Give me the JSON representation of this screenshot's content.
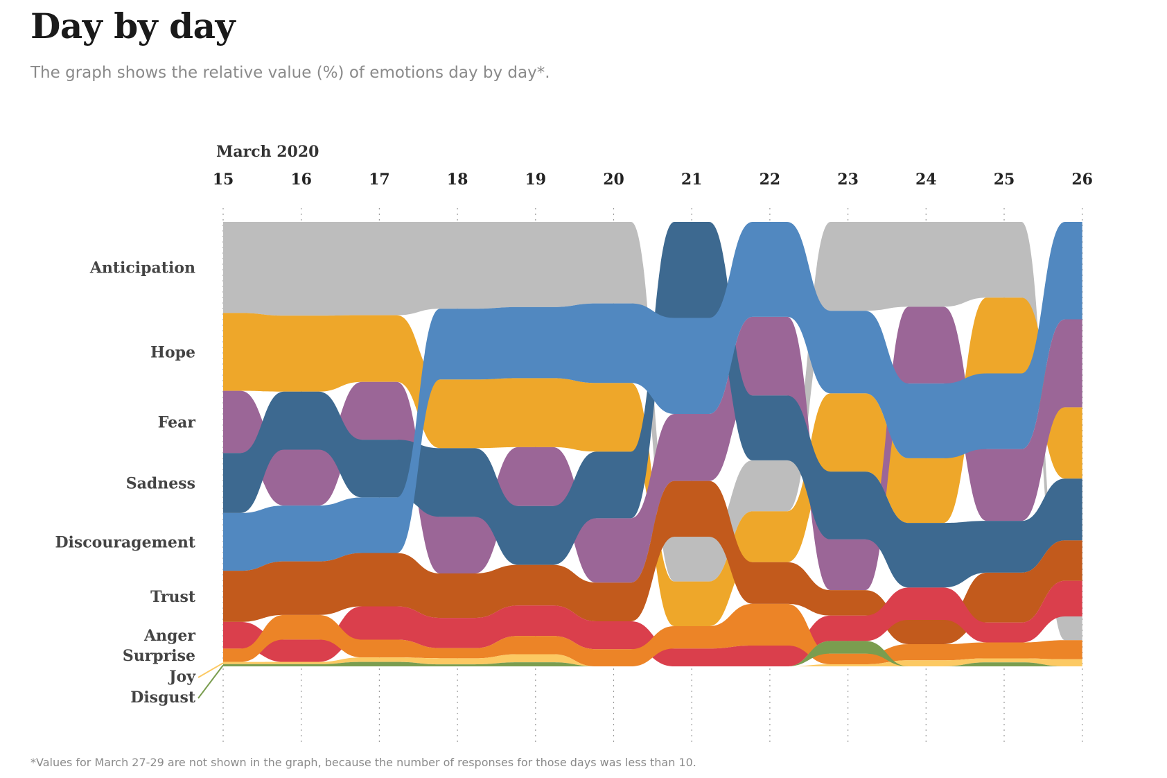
{
  "title": "Day by day",
  "subtitle": "The graph shows the relative value (%) of emotions day by day*.",
  "footnote": "*Values for March 27-29 are not shown in the graph, because the number of responses for those days was less than 10.",
  "chart_data": {
    "type": "area",
    "subtype": "bump-streamgraph (stacked 100%, re-ordered by rank each day)",
    "period_label": "March 2020",
    "x": [
      "15",
      "16",
      "17",
      "18",
      "19",
      "20",
      "21",
      "22",
      "23",
      "24",
      "25",
      "26"
    ],
    "ylim": [
      0,
      100
    ],
    "grid": "vertical dotted lines at each day",
    "legend": "left side, labels aligned to the bands on March 15",
    "series": [
      {
        "name": "Anticipation",
        "color": "#bdbdbd",
        "values": [
          20.5,
          21.0,
          21.0,
          21.5,
          21.0,
          19.0,
          10.0,
          11.0,
          21.0,
          21.0,
          19.0,
          5.0
        ]
      },
      {
        "name": "Hope",
        "color": "#eea72a",
        "values": [
          17.5,
          17.0,
          15.0,
          17.0,
          17.0,
          16.0,
          10.0,
          11.0,
          18.5,
          16.0,
          19.0,
          15.0
        ]
      },
      {
        "name": "Fear",
        "color": "#9b6697",
        "values": [
          14.0,
          12.5,
          13.0,
          14.0,
          14.5,
          15.0,
          15.0,
          17.0,
          12.0,
          19.0,
          18.0,
          18.5
        ]
      },
      {
        "name": "Sadness",
        "color": "#3d6990",
        "values": [
          13.5,
          13.0,
          13.0,
          17.0,
          14.5,
          15.5,
          21.5,
          14.0,
          16.0,
          16.0,
          13.0,
          13.0
        ]
      },
      {
        "name": "Discouragement",
        "color": "#5188c0",
        "values": [
          13.0,
          12.5,
          12.5,
          17.5,
          17.5,
          18.5,
          21.5,
          20.5,
          19.5,
          18.5,
          19.0,
          20.5
        ]
      },
      {
        "name": "Trust",
        "color": "#c25a1c",
        "values": [
          11.5,
          12.0,
          12.0,
          11.0,
          10.0,
          9.0,
          12.5,
          9.0,
          6.0,
          6.0,
          12.5,
          8.5
        ]
      },
      {
        "name": "Anger",
        "color": "#da3f4c",
        "values": [
          6.0,
          5.0,
          7.5,
          7.5,
          7.5,
          6.5,
          4.0,
          4.5,
          6.0,
          8.0,
          5.0,
          7.5
        ]
      },
      {
        "name": "Surprise",
        "color": "#ec8427",
        "values": [
          3.0,
          5.5,
          4.0,
          2.5,
          4.5,
          4.0,
          5.0,
          9.0,
          2.5,
          4.0,
          4.0,
          4.0
        ]
      },
      {
        "name": "Joy",
        "color": "#fcc963",
        "values": [
          0.5,
          0.5,
          1.0,
          1.5,
          2.0,
          0.0,
          0.0,
          0.0,
          0.5,
          1.5,
          1.0,
          1.5
        ]
      },
      {
        "name": "Disgust",
        "color": "#7a9d4f",
        "values": [
          0.5,
          0.5,
          1.0,
          0.5,
          1.0,
          0.0,
          0.0,
          0.0,
          3.0,
          0.0,
          1.0,
          0.0
        ]
      }
    ]
  }
}
